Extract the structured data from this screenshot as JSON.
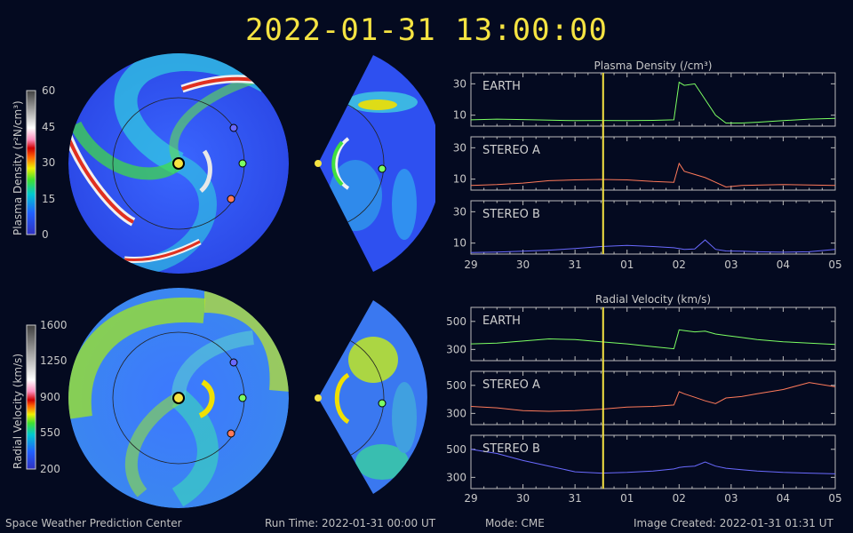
{
  "title": "2022-01-31 13:00:00",
  "footer": {
    "left": "Space Weather Prediction Center",
    "run_time": "Run Time: 2022-01-31 00:00 UT",
    "mode": "Mode: CME",
    "created": "Image Created: 2022-01-31 01:31 UT"
  },
  "colorbars": [
    {
      "label": "Plasma Density (r²N/cm³)",
      "ticks": [
        "60",
        "45",
        "30",
        "15",
        "0"
      ]
    },
    {
      "label": "Radial Velocity (km/s)",
      "ticks": [
        "1600",
        "1250",
        "900",
        "550",
        "200"
      ]
    }
  ],
  "colors": {
    "earth": "#7cff63",
    "stereo_a": "#ff7a5a",
    "stereo_b": "#6a6aff",
    "marker": "#f5e342"
  },
  "chart_data": [
    {
      "type": "line",
      "title": "Plasma Density (/cm³)",
      "x_tick_labels": [
        "29",
        "30",
        "31",
        "01",
        "02",
        "03",
        "04",
        "05"
      ],
      "x": [
        29,
        29.5,
        30,
        30.5,
        31,
        31.5,
        32,
        32.5,
        32.9,
        33.0,
        33.1,
        33.3,
        33.5,
        33.7,
        33.9,
        34.2,
        34.5,
        35,
        35.5,
        36
      ],
      "current_time": 31.54,
      "panels": [
        {
          "name": "EARTH",
          "yticks": [
            10,
            30
          ],
          "ylim": [
            3,
            37
          ],
          "values": [
            7,
            7.5,
            7.2,
            6.8,
            6.5,
            6.6,
            6.5,
            6.7,
            7,
            31,
            29,
            30,
            20,
            10,
            5,
            5,
            5.5,
            6.5,
            7.5,
            8
          ]
        },
        {
          "name": "STEREO A",
          "yticks": [
            10,
            30
          ],
          "ylim": [
            3,
            37
          ],
          "values": [
            6,
            6.5,
            7.5,
            9,
            9.5,
            9.8,
            9.5,
            8.5,
            8,
            20,
            15,
            13,
            11,
            8,
            5,
            6,
            6.2,
            6.5,
            6.3,
            6
          ]
        },
        {
          "name": "STEREO B",
          "yticks": [
            10,
            30
          ],
          "ylim": [
            3,
            37
          ],
          "values": [
            4,
            4.3,
            4.8,
            5.5,
            6.5,
            7.8,
            8.5,
            7.8,
            7,
            6.5,
            6,
            6.3,
            12,
            6,
            5,
            4.8,
            4.5,
            4.2,
            4.5,
            6
          ]
        }
      ]
    },
    {
      "type": "line",
      "title": "Radial Velocity (km/s)",
      "x_tick_labels": [
        "29",
        "30",
        "31",
        "01",
        "02",
        "03",
        "04",
        "05"
      ],
      "x": [
        29,
        29.5,
        30,
        30.5,
        31,
        31.5,
        32,
        32.5,
        32.9,
        33.0,
        33.1,
        33.3,
        33.5,
        33.7,
        33.9,
        34.2,
        34.5,
        35,
        35.5,
        36
      ],
      "current_time": 31.54,
      "panels": [
        {
          "name": "EARTH",
          "yticks": [
            300,
            500
          ],
          "ylim": [
            220,
            600
          ],
          "values": [
            340,
            345,
            360,
            375,
            370,
            355,
            340,
            320,
            305,
            440,
            435,
            425,
            430,
            410,
            400,
            385,
            370,
            355,
            345,
            335
          ]
        },
        {
          "name": "STEREO A",
          "yticks": [
            300,
            500
          ],
          "ylim": [
            220,
            600
          ],
          "values": [
            350,
            340,
            320,
            315,
            320,
            330,
            345,
            350,
            360,
            455,
            440,
            415,
            390,
            370,
            410,
            420,
            440,
            470,
            520,
            490
          ]
        },
        {
          "name": "STEREO B",
          "yticks": [
            300,
            500
          ],
          "ylim": [
            220,
            600
          ],
          "values": [
            500,
            470,
            420,
            380,
            340,
            330,
            335,
            345,
            360,
            370,
            375,
            380,
            410,
            380,
            365,
            355,
            345,
            335,
            330,
            325
          ]
        }
      ]
    }
  ]
}
